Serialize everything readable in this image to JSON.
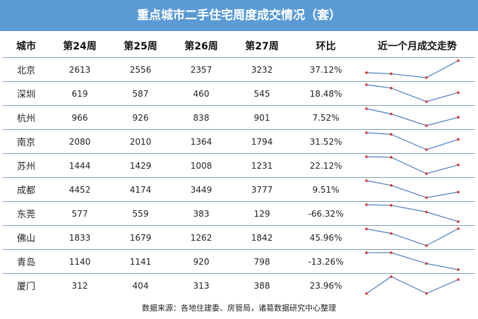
{
  "title": "重点城市二手住宅周度成交情况（套）",
  "headers": [
    "城市",
    "第24周",
    "第25周",
    "第26周",
    "第27周",
    "环比",
    "近一个月成交走势"
  ],
  "rows": [
    {
      "city": "北京",
      "w24": 2613,
      "w25": 2556,
      "w26": 2357,
      "w27": 3232,
      "mom": "37.12%"
    },
    {
      "city": "深圳",
      "w24": 619,
      "w25": 587,
      "w26": 460,
      "w27": 545,
      "mom": "18.48%"
    },
    {
      "city": "杭州",
      "w24": 966,
      "w25": 926,
      "w26": 838,
      "w27": 901,
      "mom": "7.52%"
    },
    {
      "city": "南京",
      "w24": 2080,
      "w25": 2010,
      "w26": 1364,
      "w27": 1794,
      "mom": "31.52%"
    },
    {
      "city": "苏州",
      "w24": 1444,
      "w25": 1429,
      "w26": 1008,
      "w27": 1231,
      "mom": "22.12%"
    },
    {
      "city": "成都",
      "w24": 4452,
      "w25": 4174,
      "w26": 3449,
      "w27": 3777,
      "mom": "9.51%"
    },
    {
      "city": "东莞",
      "w24": 577,
      "w25": 559,
      "w26": 383,
      "w27": 129,
      "mom": "-66.32%"
    },
    {
      "city": "佛山",
      "w24": 1833,
      "w25": 1679,
      "w26": 1262,
      "w27": 1842,
      "mom": "45.96%"
    },
    {
      "city": "青岛",
      "w24": 1140,
      "w25": 1141,
      "w26": 920,
      "w27": 798,
      "mom": "-13.26%"
    },
    {
      "city": "厦门",
      "w24": 312,
      "w25": 404,
      "w26": 313,
      "w27": 388,
      "mom": "23.96%"
    }
  ],
  "source": "数据来源：各地住建委、房管局，诸葛数据研究中心整理",
  "colors": {
    "title_bg": "#5b9bd5",
    "spark_line": "#4a7fc1",
    "spark_marker": "#d9352b",
    "row_border": "#7f9fbf"
  }
}
